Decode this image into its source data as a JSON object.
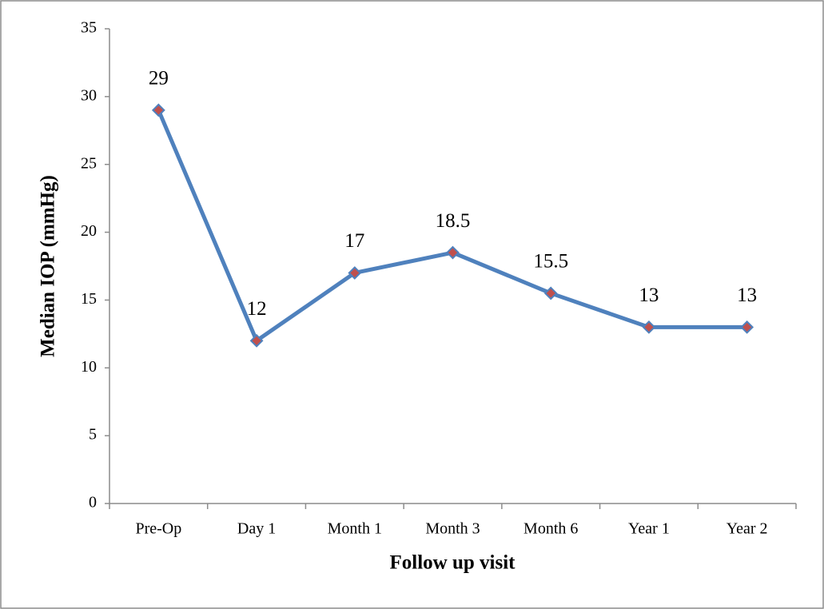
{
  "chart_data": {
    "type": "line",
    "x_label": "Follow up visit",
    "y_label": "Median IOP (mmHg)",
    "categories": [
      "Pre-Op",
      "Day 1",
      "Month 1",
      "Month 3",
      "Month 6",
      "Year 1",
      "Year 2"
    ],
    "values": [
      29,
      12,
      17,
      18.5,
      15.5,
      13,
      13
    ],
    "color": "#4f81bd",
    "marker_color": "#c0504d",
    "ylim": [
      0,
      35
    ],
    "yticks": [
      0,
      5,
      10,
      15,
      20,
      25,
      30,
      35
    ],
    "grid": false,
    "data_labels": true
  }
}
